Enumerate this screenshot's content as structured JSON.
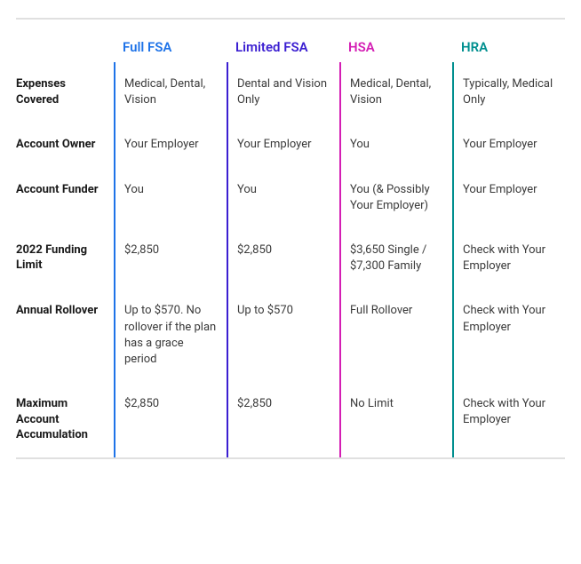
{
  "table": {
    "border_color": "#e0e0e0",
    "columns": [
      {
        "label": "Full FSA",
        "header_color": "#1e73e8",
        "divider_color": "#1e73e8"
      },
      {
        "label": "Limited FSA",
        "header_color": "#3b1fd1",
        "divider_color": "#3b1fd1"
      },
      {
        "label": "HSA",
        "header_color": "#d41eb4",
        "divider_color": "#d41eb4"
      },
      {
        "label": "HRA",
        "header_color": "#008f8f",
        "divider_color": "#008f8f"
      }
    ],
    "rows": [
      {
        "label": "Expenses Covered",
        "values": [
          "Medical, Dental, Vision",
          "Dental and Vision Only",
          "Medical, Dental, Vision",
          "Typically, Medical Only"
        ]
      },
      {
        "label": "Account Owner",
        "values": [
          "Your Employer",
          "Your Employer",
          "You",
          "Your Employer"
        ]
      },
      {
        "label": "Account Funder",
        "values": [
          "You",
          "You",
          "You (& Possibly Your Employer)",
          "Your Employer"
        ]
      },
      {
        "label": "2022 Funding Limit",
        "values": [
          "$2,850",
          "$2,850",
          "$3,650 Single / $7,300 Family",
          "Check with Your  Employer"
        ]
      },
      {
        "label": "Annual Rollover",
        "values": [
          "Up to $570. No rollover if the plan has a grace period",
          "Up to $570",
          "Full Rollover",
          "Check with Your  Employer"
        ]
      },
      {
        "label": "Maximum Account Accumulation",
        "values": [
          "$2,850",
          "$2,850",
          "No Limit",
          "Check with Your  Employer"
        ]
      }
    ],
    "label_color": "#1a1a1a",
    "value_color": "#3a3a3a",
    "label_fontsize": 13,
    "value_fontsize": 13,
    "header_fontsize": 15
  }
}
